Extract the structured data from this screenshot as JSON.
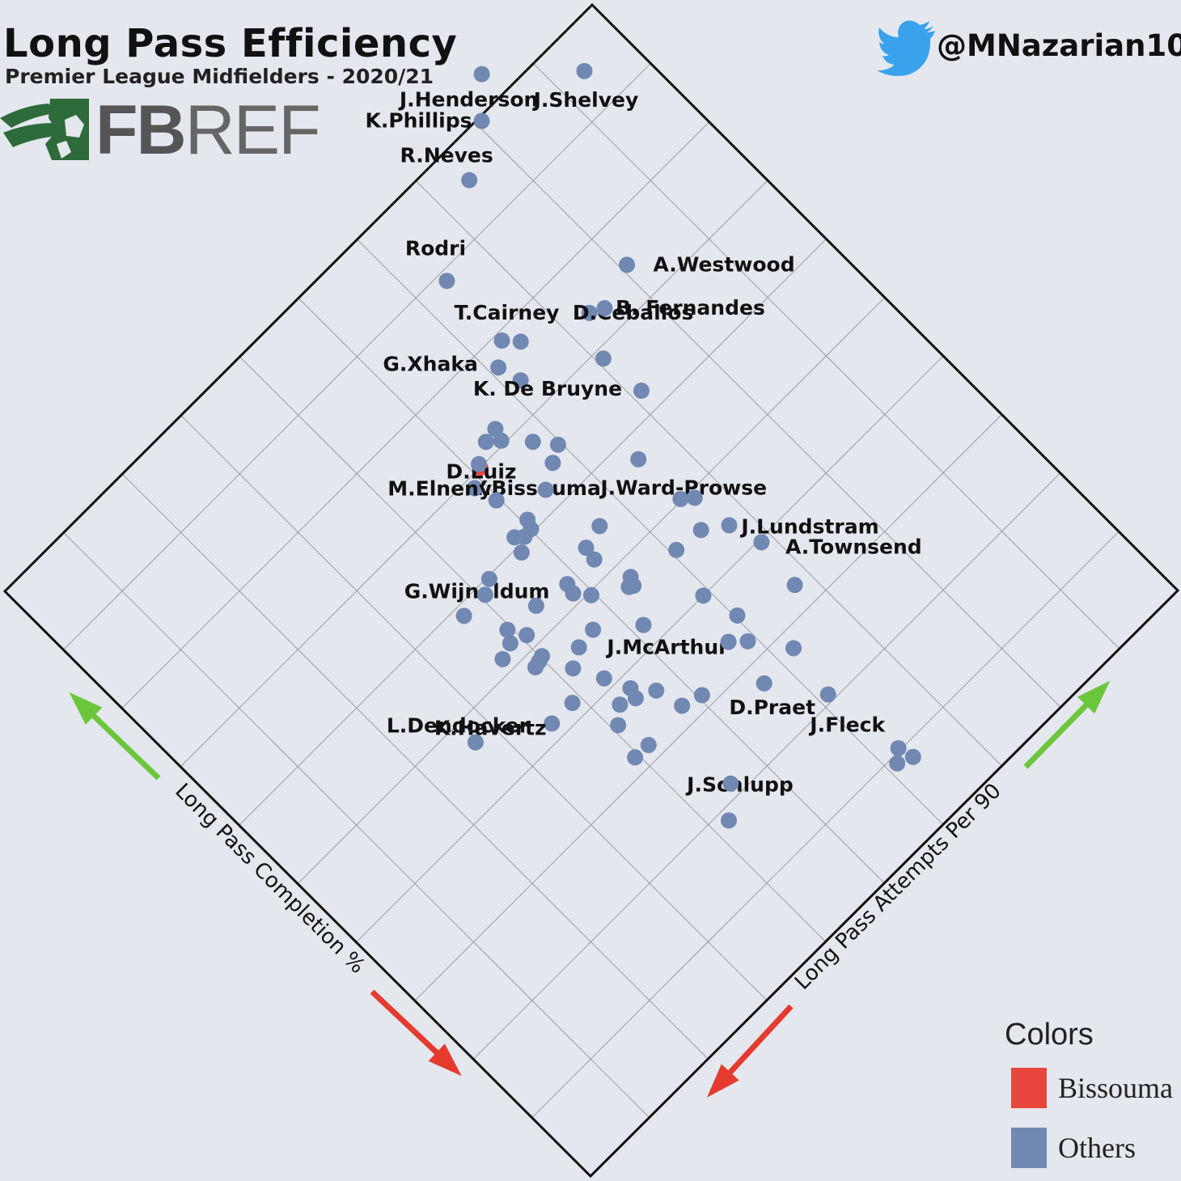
{
  "header": {
    "title": "Long Pass Efficiency",
    "subtitle": "Premier League Midfielders - 2020/21",
    "logo_text": "FBREF",
    "handle": "@MNazarian10"
  },
  "colors": {
    "highlight": "#e8453c",
    "others": "#7088b2",
    "arrow_good": "#6cc63c",
    "arrow_bad": "#e53a2e",
    "logo_green": "#2e6b3a",
    "twitter": "#3aa2ec"
  },
  "legend": {
    "title": "Colors",
    "items": [
      {
        "label": "Bissouma",
        "color": "#e8453c"
      },
      {
        "label": "Others",
        "color": "#7088b2"
      }
    ]
  },
  "chart_data": {
    "type": "scatter",
    "rotated_45": true,
    "xlabel": "Long Pass Attempts Per 90",
    "ylabel": "Long Pass Completion %",
    "grid": true,
    "series": [
      {
        "name": "Bissouma",
        "color": "#e8453c",
        "points": [
          {
            "label": "Y.Bissouma",
            "u": 0.51,
            "v": 0.3
          }
        ]
      },
      {
        "name": "Others",
        "color": "#7088b2",
        "points": [
          {
            "label": "R.Neves",
            "u": 0.746,
            "v": 0.045
          },
          {
            "label": "Rodri",
            "u": 0.641,
            "v": 0.112
          },
          {
            "label": "K.Phillips",
            "u": 0.807,
            "v": 0.005
          },
          {
            "label": "J.Henderson",
            "u": 0.847,
            "v": -0.035
          },
          {
            "label": "T.Cairney",
            "u": 0.637,
            "v": 0.21
          },
          {
            "label": "G.Xhaka",
            "u": 0.611,
            "v": 0.23
          },
          {
            "label": "J.Shelvey",
            "u": 0.937,
            "v": 0.05
          },
          {
            "label": "",
            "u": 0.619,
            "v": 0.26
          },
          {
            "label": "",
            "u": 0.652,
            "v": 0.227
          },
          {
            "label": "",
            "u": 0.537,
            "v": 0.283
          },
          {
            "label": "",
            "u": 0.556,
            "v": 0.28
          },
          {
            "label": "",
            "u": 0.551,
            "v": 0.295
          },
          {
            "label": "D.Luiz",
            "u": 0.488,
            "v": 0.313
          },
          {
            "label": "",
            "u": 0.512,
            "v": 0.296
          },
          {
            "label": "M.Elneny",
            "u": 0.496,
            "v": 0.342
          },
          {
            "label": "",
            "u": 0.577,
            "v": 0.323
          },
          {
            "label": "D.Ceballos",
            "u": 0.735,
            "v": 0.261
          },
          {
            "label": "B. Fernandes",
            "u": 0.752,
            "v": 0.27
          },
          {
            "label": "",
            "u": 0.708,
            "v": 0.312
          },
          {
            "label": "A.Westwood",
            "u": 0.808,
            "v": 0.252
          },
          {
            "label": "",
            "u": 0.576,
            "v": 0.358
          },
          {
            "label": "",
            "u": 0.596,
            "v": 0.347
          },
          {
            "label": "",
            "u": 0.547,
            "v": 0.375
          },
          {
            "label": "",
            "u": 0.506,
            "v": 0.385
          },
          {
            "label": "",
            "u": 0.489,
            "v": 0.397
          },
          {
            "label": "",
            "u": 0.48,
            "v": 0.389
          },
          {
            "label": "",
            "u": 0.473,
            "v": 0.408
          },
          {
            "label": "",
            "u": 0.501,
            "v": 0.396
          },
          {
            "label": "G.Wijnaldum",
            "u": 0.37,
            "v": 0.413
          },
          {
            "label": "",
            "u": 0.406,
            "v": 0.413
          },
          {
            "label": "",
            "u": 0.423,
            "v": 0.403
          },
          {
            "label": "K. De Bruyne",
            "u": 0.713,
            "v": 0.372
          },
          {
            "label": "J.Ward-Prowse",
            "u": 0.652,
            "v": 0.428
          },
          {
            "label": "",
            "u": 0.395,
            "v": 0.462
          },
          {
            "label": "",
            "u": 0.386,
            "v": 0.476
          },
          {
            "label": "",
            "u": 0.366,
            "v": 0.483
          },
          {
            "label": "",
            "u": 0.407,
            "v": 0.483
          },
          {
            "label": "",
            "u": 0.44,
            "v": 0.466
          },
          {
            "label": "",
            "u": 0.485,
            "v": 0.474
          },
          {
            "label": "",
            "u": 0.482,
            "v": 0.487
          },
          {
            "label": "",
            "u": 0.532,
            "v": 0.459
          },
          {
            "label": "",
            "u": 0.529,
            "v": 0.476
          },
          {
            "label": "",
            "u": 0.562,
            "v": 0.452
          },
          {
            "label": "",
            "u": 0.496,
            "v": 0.504
          },
          {
            "label": "",
            "u": 0.395,
            "v": 0.516
          },
          {
            "label": "",
            "u": 0.387,
            "v": 0.518
          },
          {
            "label": "",
            "u": 0.402,
            "v": 0.514
          },
          {
            "label": "L.Dendocker",
            "u": 0.272,
            "v": 0.531
          },
          {
            "label": "",
            "u": 0.441,
            "v": 0.538
          },
          {
            "label": "",
            "u": 0.468,
            "v": 0.535
          },
          {
            "label": "",
            "u": 0.418,
            "v": 0.551
          },
          {
            "label": "",
            "u": 0.535,
            "v": 0.529
          },
          {
            "label": "",
            "u": 0.545,
            "v": 0.522
          },
          {
            "label": "",
            "u": 0.54,
            "v": 0.532
          },
          {
            "label": "",
            "u": 0.654,
            "v": 0.498
          },
          {
            "label": "",
            "u": 0.667,
            "v": 0.509
          },
          {
            "label": "",
            "u": 0.607,
            "v": 0.538
          },
          {
            "label": "",
            "u": 0.645,
            "v": 0.542
          },
          {
            "label": "K.Havertz",
            "u": 0.353,
            "v": 0.58
          },
          {
            "label": "",
            "u": 0.388,
            "v": 0.58
          },
          {
            "label": "",
            "u": 0.436,
            "v": 0.586
          },
          {
            "label": "J.McArthur",
            "u": 0.515,
            "v": 0.574
          },
          {
            "label": "",
            "u": 0.427,
            "v": 0.622
          },
          {
            "label": "",
            "u": 0.45,
            "v": 0.617
          },
          {
            "label": "",
            "u": 0.446,
            "v": 0.63
          },
          {
            "label": "",
            "u": 0.408,
            "v": 0.638
          },
          {
            "label": "",
            "u": 0.47,
            "v": 0.641
          },
          {
            "label": "",
            "u": 0.591,
            "v": 0.6
          },
          {
            "label": "J.Lundstram",
            "u": 0.673,
            "v": 0.562
          },
          {
            "label": "",
            "u": 0.395,
            "v": 0.68
          },
          {
            "label": "",
            "u": 0.417,
            "v": 0.681
          },
          {
            "label": "",
            "u": 0.479,
            "v": 0.676
          },
          {
            "label": "",
            "u": 0.505,
            "v": 0.684
          },
          {
            "label": "",
            "u": 0.573,
            "v": 0.661
          },
          {
            "label": "",
            "u": 0.603,
            "v": 0.646
          },
          {
            "label": "",
            "u": 0.59,
            "v": 0.677
          },
          {
            "label": "A.Townsend",
            "u": 0.686,
            "v": 0.604
          },
          {
            "label": "",
            "u": 0.623,
            "v": 0.722
          },
          {
            "label": "",
            "u": 0.678,
            "v": 0.669
          },
          {
            "label": "J.Schlupp",
            "u": 0.421,
            "v": 0.814
          },
          {
            "label": "",
            "u": 0.454,
            "v": 0.784
          },
          {
            "label": "D.Praet",
            "u": 0.568,
            "v": 0.727
          },
          {
            "label": "J.Fleck",
            "u": 0.613,
            "v": 0.791
          },
          {
            "label": "",
            "u": 0.613,
            "v": 0.909
          },
          {
            "label": "",
            "u": 0.627,
            "v": 0.897
          },
          {
            "label": "",
            "u": 0.632,
            "v": 0.917
          }
        ]
      }
    ]
  }
}
